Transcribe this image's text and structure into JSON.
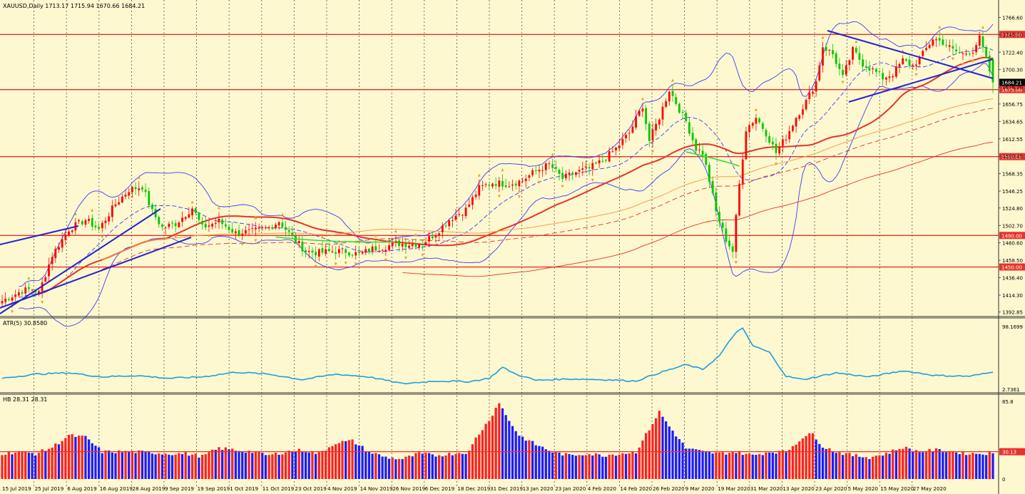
{
  "window": {
    "symbol_line": "XAUUSD,Daily  1713.17 1715.94 1670.66 1684.21"
  },
  "colors": {
    "background": "#fdf8cf",
    "bull_candle": "#ff0000",
    "bear_candle": "#00c800",
    "hline": "#e8322b",
    "bollinger": "#3c3cff",
    "ma_fast": "#e8322b",
    "ma_slow": "#f5a04a",
    "atr": "#1aa0e0",
    "trendline": "#2323d0",
    "hist_up": "#ff2020",
    "hist_down": "#1c1cff",
    "grid": "#555555"
  },
  "chart_data": [
    {
      "type": "candlestick",
      "panel": "price",
      "title": "XAUUSD,Daily  1713.17 1715.94 1670.66 1684.21",
      "last": {
        "open": 1713.17,
        "high": 1715.94,
        "low": 1670.66,
        "close": 1684.21
      },
      "current_price_label": "1684.21",
      "y_ticks": [
        "1766.60",
        "1745.00",
        "1722.40",
        "1700.30",
        "1678.20",
        "1656.75",
        "1634.65",
        "1612.55",
        "1590.45",
        "1568.35",
        "1546.25",
        "1524.80",
        "1502.70",
        "1480.60",
        "1458.50",
        "1436.40",
        "1414.30",
        "1392.85"
      ],
      "ylim": [
        1389,
        1776
      ],
      "horizontal_levels": [
        {
          "value": 1745,
          "label": "1745.00"
        },
        {
          "value": 1675,
          "label": "1675.00"
        },
        {
          "value": 1590,
          "label": "1590.00"
        },
        {
          "value": 1490,
          "label": "1490.00"
        },
        {
          "value": 1450,
          "label": "1450.00"
        }
      ],
      "x_labels": [
        "15 Jul 2019",
        "25 Jul 2019",
        "6 Aug 2019",
        "16 Aug 2019",
        "28 Aug 2019",
        "9 Sep 2019",
        "19 Sep 2019",
        "1 Oct 2019",
        "11 Oct 2019",
        "23 Oct 2019",
        "4 Nov 2019",
        "14 Nov 2019",
        "26 Nov 2019",
        "6 Dec 2019",
        "18 Dec 2019",
        "31 Dec 2019",
        "13 Jan 2020",
        "23 Jan 2020",
        "4 Feb 2020",
        "14 Feb 2020",
        "26 Feb 2020",
        "9 Mar 2020",
        "19 Mar 2020",
        "31 Mar 2020",
        "13 Apr 2020",
        "23 Apr 2020",
        "5 May 2020",
        "15 May 2020",
        "27 May 2020"
      ],
      "close_anchors": [
        [
          0,
          1407
        ],
        [
          6,
          1420
        ],
        [
          9,
          1422
        ],
        [
          11,
          1417
        ],
        [
          15,
          1465
        ],
        [
          20,
          1498
        ],
        [
          25,
          1510
        ],
        [
          29,
          1498
        ],
        [
          34,
          1530
        ],
        [
          38,
          1548
        ],
        [
          42,
          1552
        ],
        [
          45,
          1520
        ],
        [
          48,
          1500
        ],
        [
          52,
          1505
        ],
        [
          57,
          1525
        ],
        [
          60,
          1500
        ],
        [
          65,
          1508
        ],
        [
          70,
          1493
        ],
        [
          75,
          1495
        ],
        [
          80,
          1500
        ],
        [
          83,
          1508
        ],
        [
          87,
          1488
        ],
        [
          91,
          1470
        ],
        [
          95,
          1468
        ],
        [
          99,
          1470
        ],
        [
          103,
          1470
        ],
        [
          107,
          1466
        ],
        [
          111,
          1473
        ],
        [
          115,
          1476
        ],
        [
          118,
          1480
        ],
        [
          122,
          1479
        ],
        [
          126,
          1480
        ],
        [
          130,
          1493
        ],
        [
          134,
          1510
        ],
        [
          139,
          1523
        ],
        [
          143,
          1550
        ],
        [
          147,
          1557
        ],
        [
          152,
          1555
        ],
        [
          156,
          1560
        ],
        [
          160,
          1572
        ],
        [
          164,
          1580
        ],
        [
          168,
          1562
        ],
        [
          172,
          1570
        ],
        [
          176,
          1575
        ],
        [
          180,
          1585
        ],
        [
          184,
          1600
        ],
        [
          188,
          1620
        ],
        [
          192,
          1655
        ],
        [
          194,
          1610
        ],
        [
          197,
          1640
        ],
        [
          200,
          1675
        ],
        [
          203,
          1650
        ],
        [
          205,
          1635
        ],
        [
          208,
          1600
        ],
        [
          210,
          1595
        ],
        [
          212,
          1560
        ],
        [
          214,
          1520
        ],
        [
          217,
          1485
        ],
        [
          219,
          1470
        ],
        [
          221,
          1555
        ],
        [
          223,
          1625
        ],
        [
          226,
          1640
        ],
        [
          229,
          1620
        ],
        [
          232,
          1595
        ],
        [
          235,
          1615
        ],
        [
          238,
          1640
        ],
        [
          241,
          1660
        ],
        [
          244,
          1685
        ],
        [
          246,
          1730
        ],
        [
          249,
          1720
        ],
        [
          252,
          1690
        ],
        [
          255,
          1725
        ],
        [
          258,
          1708
        ],
        [
          261,
          1700
        ],
        [
          264,
          1690
        ],
        [
          267,
          1695
        ],
        [
          270,
          1712
        ],
        [
          273,
          1705
        ],
        [
          276,
          1720
        ],
        [
          279,
          1740
        ],
        [
          282,
          1735
        ],
        [
          285,
          1725
        ],
        [
          288,
          1720
        ],
        [
          291,
          1725
        ],
        [
          293,
          1740
        ],
        [
          295,
          1713
        ],
        [
          297,
          1684
        ]
      ],
      "indicators": [
        "Bollinger Bands",
        "Moving Average (fast)",
        "Moving Average (slow)",
        "Envelope"
      ],
      "trendlines": 5,
      "grid": true
    },
    {
      "type": "line",
      "panel": "atr",
      "title": "ATR(5) 30.8580",
      "y_ticks": [
        "98.1699",
        "2.7361"
      ],
      "ylim": [
        2.7361,
        98.1699
      ],
      "series": [
        {
          "name": "ATR(5)",
          "anchors": [
            [
              0,
              22
            ],
            [
              10,
              28
            ],
            [
              20,
              30
            ],
            [
              30,
              24
            ],
            [
              40,
              26
            ],
            [
              50,
              22
            ],
            [
              60,
              24
            ],
            [
              70,
              31
            ],
            [
              80,
              28
            ],
            [
              90,
              20
            ],
            [
              100,
              28
            ],
            [
              110,
              24
            ],
            [
              120,
              14
            ],
            [
              130,
              18
            ],
            [
              140,
              17
            ],
            [
              146,
              22
            ],
            [
              150,
              38
            ],
            [
              154,
              28
            ],
            [
              160,
              19
            ],
            [
              170,
              21
            ],
            [
              180,
              20
            ],
            [
              190,
              18
            ],
            [
              197,
              30
            ],
            [
              205,
              42
            ],
            [
              210,
              35
            ],
            [
              215,
              55
            ],
            [
              220,
              90
            ],
            [
              222,
              95
            ],
            [
              225,
              70
            ],
            [
              230,
              60
            ],
            [
              235,
              25
            ],
            [
              240,
              20
            ],
            [
              250,
              30
            ],
            [
              260,
              24
            ],
            [
              270,
              33
            ],
            [
              280,
              26
            ],
            [
              290,
              25
            ],
            [
              297,
              30.858
            ]
          ]
        }
      ],
      "last_value": 30.858,
      "grid": true
    },
    {
      "type": "bar",
      "panel": "histogram",
      "title": "HB 28.31 28.31",
      "y_ticks": [
        "85.8",
        "30.13",
        "0"
      ],
      "ylim": [
        0,
        88
      ],
      "reference_line": 30.13,
      "anchors": [
        [
          0,
          28
        ],
        [
          5,
          30
        ],
        [
          10,
          28
        ],
        [
          15,
          35
        ],
        [
          20,
          48
        ],
        [
          25,
          46
        ],
        [
          30,
          30
        ],
        [
          40,
          30
        ],
        [
          50,
          28
        ],
        [
          55,
          28
        ],
        [
          60,
          25
        ],
        [
          65,
          34
        ],
        [
          70,
          32
        ],
        [
          75,
          30
        ],
        [
          80,
          26
        ],
        [
          85,
          30
        ],
        [
          90,
          32
        ],
        [
          95,
          28
        ],
        [
          100,
          40
        ],
        [
          105,
          42
        ],
        [
          110,
          30
        ],
        [
          115,
          24
        ],
        [
          120,
          22
        ],
        [
          125,
          28
        ],
        [
          130,
          26
        ],
        [
          135,
          28
        ],
        [
          140,
          30
        ],
        [
          142,
          45
        ],
        [
          146,
          65
        ],
        [
          149,
          85
        ],
        [
          151,
          70
        ],
        [
          155,
          48
        ],
        [
          160,
          38
        ],
        [
          165,
          30
        ],
        [
          170,
          26
        ],
        [
          175,
          28
        ],
        [
          180,
          26
        ],
        [
          185,
          28
        ],
        [
          190,
          30
        ],
        [
          194,
          55
        ],
        [
          197,
          74
        ],
        [
          200,
          58
        ],
        [
          205,
          34
        ],
        [
          210,
          30
        ],
        [
          215,
          28
        ],
        [
          220,
          30
        ],
        [
          225,
          26
        ],
        [
          230,
          30
        ],
        [
          235,
          30
        ],
        [
          240,
          46
        ],
        [
          243,
          50
        ],
        [
          246,
          36
        ],
        [
          250,
          30
        ],
        [
          255,
          26
        ],
        [
          260,
          24
        ],
        [
          265,
          28
        ],
        [
          270,
          35
        ],
        [
          275,
          30
        ],
        [
          280,
          32
        ],
        [
          285,
          30
        ],
        [
          290,
          28
        ],
        [
          295,
          28.31
        ]
      ],
      "last_value": 28.31,
      "grid": true
    }
  ]
}
